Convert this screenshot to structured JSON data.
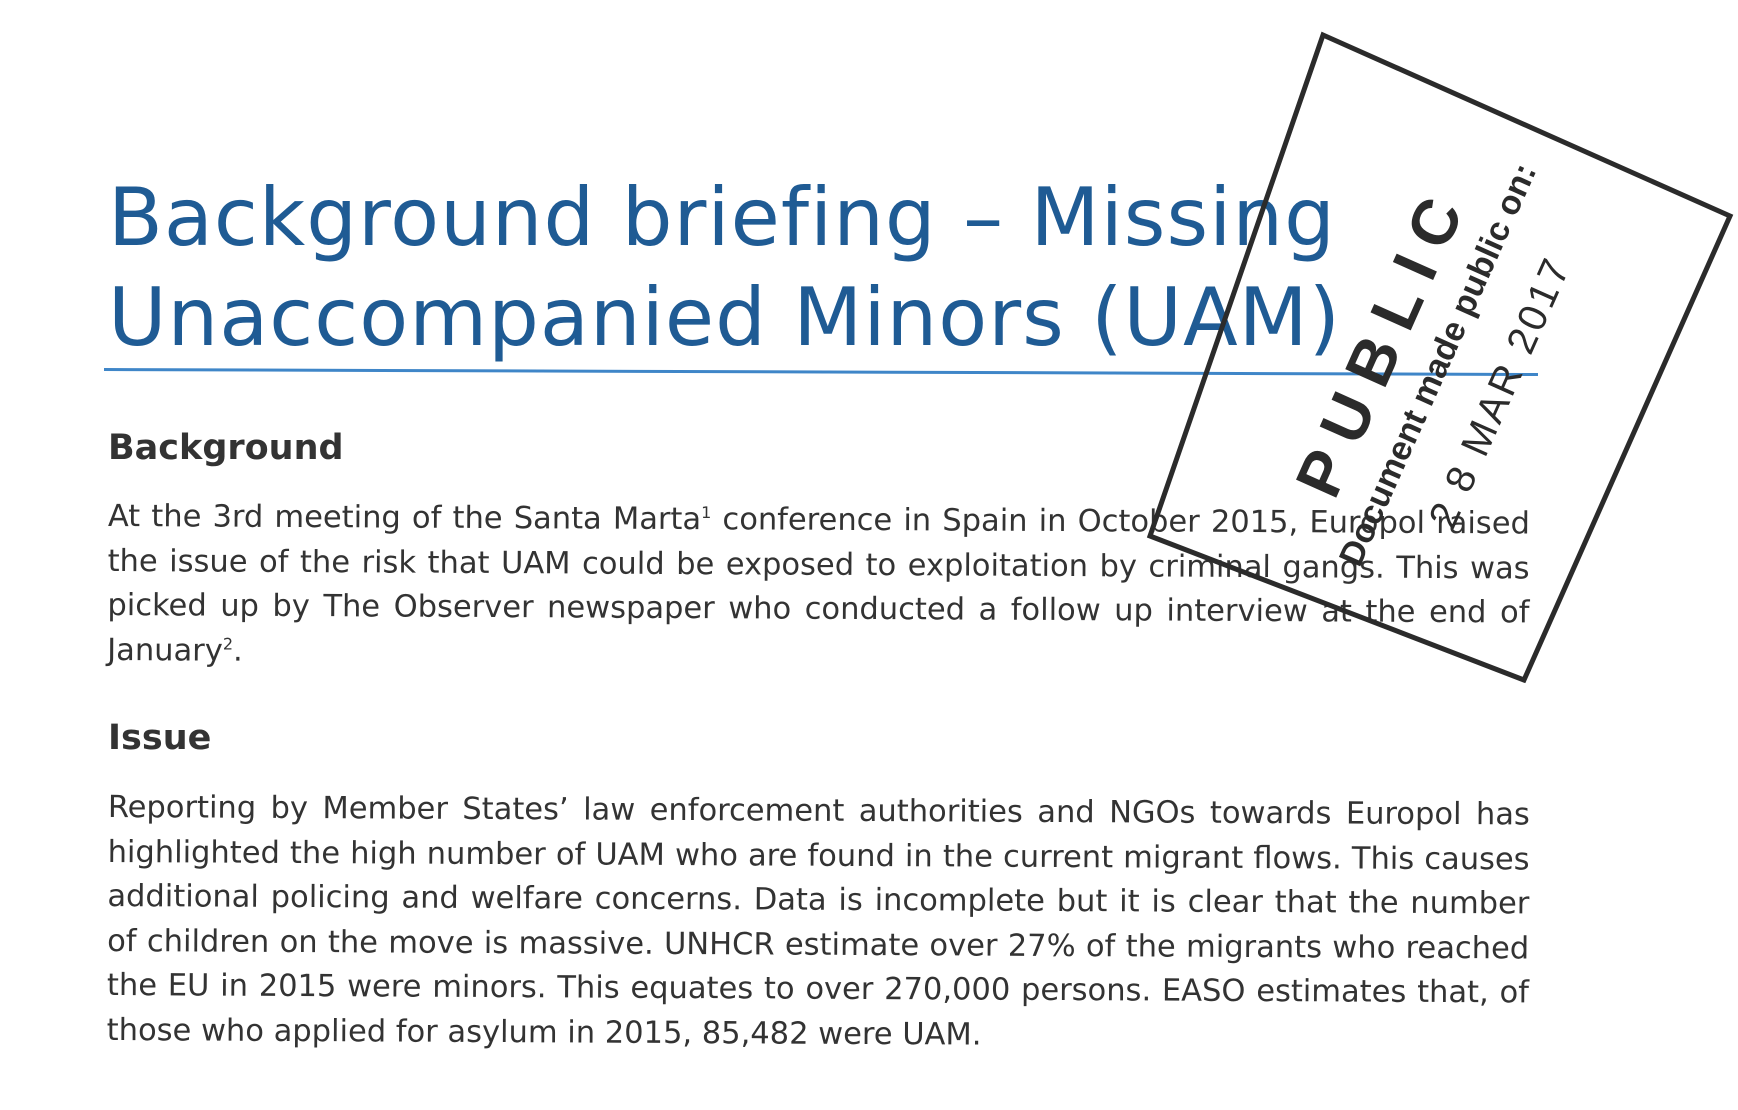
{
  "document": {
    "title_line1": "Background briefing – Missing",
    "title_line2": "Unaccompanied Minors (UAM)",
    "sections": {
      "background": {
        "heading": "Background",
        "text_before_fn1": "At the 3rd meeting of the Santa Marta",
        "fn1": "1",
        "text_after_fn1": " conference in Spain in October 2015, Europol raised the issue of the risk that UAM could be exposed to exploitation by criminal gangs. This was picked up by The Observer newspaper who conducted a follow up interview at the end of January",
        "fn2": "2",
        "text_end": "."
      },
      "issue": {
        "heading": "Issue",
        "text": "Reporting by Member States’ law enforcement authorities and NGOs towards Europol has highlighted the high number of UAM who are found in the current migrant flows. This causes additional policing and welfare concerns. Data is incomplete but it is clear that the number of children on the move is massive. UNHCR estimate over 27% of the migrants who reached the EU in 2015 were minors. This equates to over 270,000 persons. EASO estimates that, of those who applied for asylum in 2015, 85,482 were UAM."
      }
    }
  },
  "stamp": {
    "word": "PUBLIC",
    "caption": "Document made public on:",
    "date": "2 8 MAR 2017",
    "ink_color": "#2b2b2b"
  },
  "colors": {
    "title": "#1f5b94",
    "rule": "#3f86c8",
    "body_text": "#333333"
  }
}
